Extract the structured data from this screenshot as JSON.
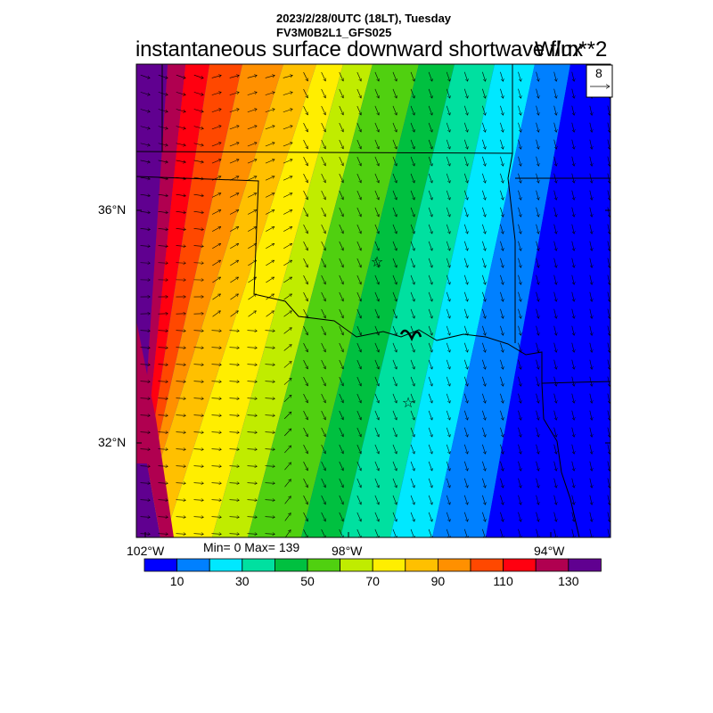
{
  "header": {
    "date_line": "2023/2/28/0UTC (18LT), Tuesday",
    "model_line": "FV3M0B2L1_GFS025",
    "title": "instantaneous surface downward shortwave flux",
    "units": "W/m**2"
  },
  "vector_legend": {
    "value": "8"
  },
  "map": {
    "lat_labels": [
      "36°N",
      "32°N"
    ],
    "lon_labels": [
      "102°W",
      "98°W",
      "94°W"
    ]
  },
  "stats": "Min= 0 Max= 139",
  "colorbar": {
    "colors": [
      "#0000ff",
      "#0080ff",
      "#00e8ff",
      "#00e0a0",
      "#00c040",
      "#50d010",
      "#c0ec00",
      "#ffee00",
      "#ffc000",
      "#ff9000",
      "#ff4800",
      "#ff0010",
      "#b00050",
      "#600090"
    ],
    "labels": [
      "10",
      "30",
      "50",
      "70",
      "90",
      "110",
      "130"
    ]
  }
}
